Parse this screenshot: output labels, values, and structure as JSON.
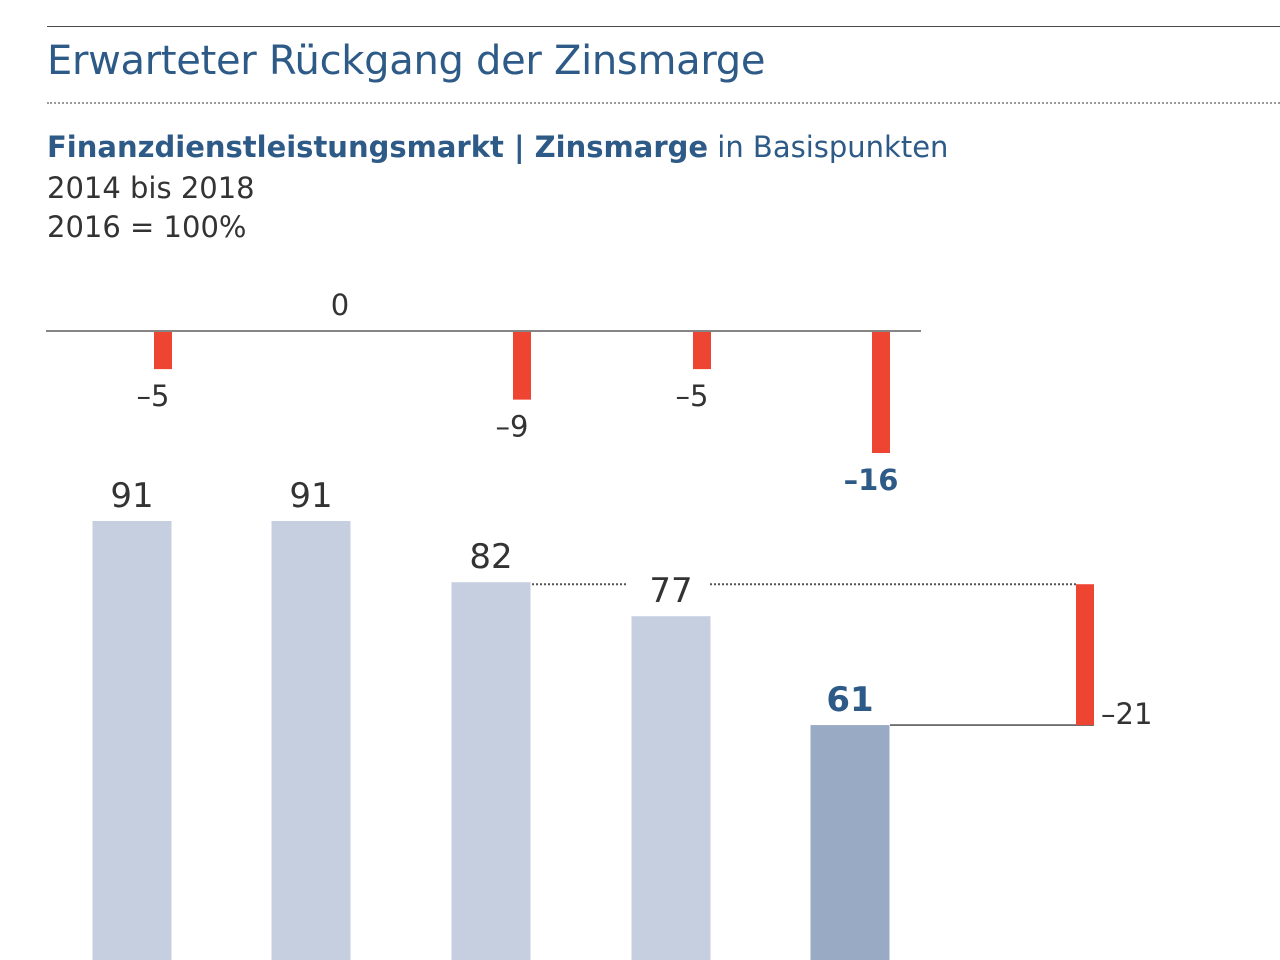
{
  "header": {
    "title": "Erwarteter Rückgang der Zinsmarge",
    "subtitle_bold_1": "Finanzdienstleistungsmarkt",
    "subtitle_separator": " | ",
    "subtitle_bold_2": "Zinsmarge",
    "subtitle_rest": " in Basispunkten",
    "period": "2014 bis 2018",
    "base": "2016 = 100%"
  },
  "colors": {
    "bar": "#c5cfe0",
    "bar_highlight": "#99aac4",
    "change": "#ee4432",
    "text": "#333333",
    "accent": "#2d5a86"
  },
  "chart_data": {
    "type": "bar",
    "title": "",
    "xlabel": "",
    "ylabel": "",
    "categories": [
      "",
      "",
      "",
      "",
      ""
    ],
    "series": [
      {
        "name": "",
        "values": [
          91,
          91,
          82,
          77,
          61
        ],
        "labels": [
          "91",
          "91",
          "82",
          "77",
          "61"
        ],
        "highlight_index": 4
      }
    ],
    "changes": {
      "values": [
        -5,
        0,
        -9,
        -5,
        -16
      ],
      "labels": [
        "–5",
        "0",
        "–9",
        "–5",
        "–16"
      ],
      "highlight_index": 4
    },
    "total_change": {
      "value": -21,
      "label": "–21",
      "from_value": 82,
      "to_value": 61
    },
    "grid": false,
    "legend": "none"
  }
}
